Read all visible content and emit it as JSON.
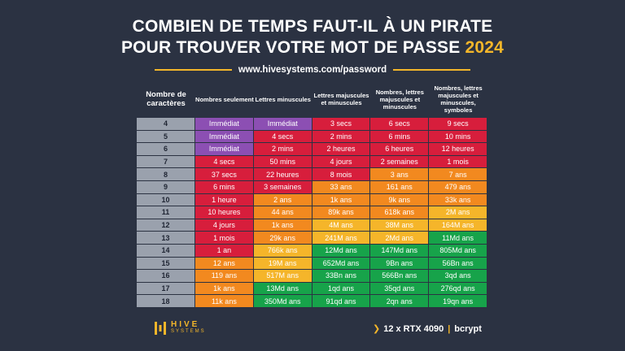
{
  "title": {
    "line1": "COMBIEN DE TEMPS FAUT-IL À UN PIRATE",
    "line2": "POUR TROUVER VOTRE MOT DE PASSE",
    "year": "2024"
  },
  "url": "www.hivesystems.com/password",
  "headers": [
    "Nombre de caractères",
    "Nombres seulement",
    "Lettres minuscules",
    "Lettres majuscules et minuscules",
    "Nombres, lettres majuscules et minuscules",
    "Nombres, lettres majuscules et minuscules, symboles"
  ],
  "rows": [
    {
      "n": "4",
      "cells": [
        {
          "t": "Immédiat",
          "c": "purple"
        },
        {
          "t": "Immédiat",
          "c": "purple"
        },
        {
          "t": "3 secs",
          "c": "red"
        },
        {
          "t": "6 secs",
          "c": "red"
        },
        {
          "t": "9 secs",
          "c": "red"
        }
      ]
    },
    {
      "n": "5",
      "cells": [
        {
          "t": "Immédiat",
          "c": "purple"
        },
        {
          "t": "4 secs",
          "c": "red"
        },
        {
          "t": "2 mins",
          "c": "red"
        },
        {
          "t": "6 mins",
          "c": "red"
        },
        {
          "t": "10 mins",
          "c": "red"
        }
      ]
    },
    {
      "n": "6",
      "cells": [
        {
          "t": "Immédiat",
          "c": "purple"
        },
        {
          "t": "2 mins",
          "c": "red"
        },
        {
          "t": "2 heures",
          "c": "red"
        },
        {
          "t": "6 heures",
          "c": "red"
        },
        {
          "t": "12 heures",
          "c": "red"
        }
      ]
    },
    {
      "n": "7",
      "cells": [
        {
          "t": "4 secs",
          "c": "red"
        },
        {
          "t": "50 mins",
          "c": "red"
        },
        {
          "t": "4 jours",
          "c": "red"
        },
        {
          "t": "2 semaines",
          "c": "red"
        },
        {
          "t": "1 mois",
          "c": "red"
        }
      ]
    },
    {
      "n": "8",
      "cells": [
        {
          "t": "37 secs",
          "c": "red"
        },
        {
          "t": "22 heures",
          "c": "red"
        },
        {
          "t": "8 mois",
          "c": "red"
        },
        {
          "t": "3 ans",
          "c": "orange"
        },
        {
          "t": "7 ans",
          "c": "orange"
        }
      ]
    },
    {
      "n": "9",
      "cells": [
        {
          "t": "6 mins",
          "c": "red"
        },
        {
          "t": "3 semaines",
          "c": "red"
        },
        {
          "t": "33 ans",
          "c": "orange"
        },
        {
          "t": "161 ans",
          "c": "orange"
        },
        {
          "t": "479 ans",
          "c": "orange"
        }
      ]
    },
    {
      "n": "10",
      "cells": [
        {
          "t": "1 heure",
          "c": "red"
        },
        {
          "t": "2 ans",
          "c": "orange"
        },
        {
          "t": "1k ans",
          "c": "orange"
        },
        {
          "t": "9k ans",
          "c": "orange"
        },
        {
          "t": "33k ans",
          "c": "orange"
        }
      ]
    },
    {
      "n": "11",
      "cells": [
        {
          "t": "10 heures",
          "c": "red"
        },
        {
          "t": "44 ans",
          "c": "orange"
        },
        {
          "t": "89k ans",
          "c": "orange"
        },
        {
          "t": "618k ans",
          "c": "orange"
        },
        {
          "t": "2M ans",
          "c": "yellow"
        }
      ]
    },
    {
      "n": "12",
      "cells": [
        {
          "t": "4 jours",
          "c": "red"
        },
        {
          "t": "1k ans",
          "c": "orange"
        },
        {
          "t": "4M ans",
          "c": "yellow"
        },
        {
          "t": "38M ans",
          "c": "yellow"
        },
        {
          "t": "164M ans",
          "c": "yellow"
        }
      ]
    },
    {
      "n": "13",
      "cells": [
        {
          "t": "1 mois",
          "c": "red"
        },
        {
          "t": "29k ans",
          "c": "orange"
        },
        {
          "t": "241M ans",
          "c": "yellow"
        },
        {
          "t": "2Md ans",
          "c": "yellow"
        },
        {
          "t": "11Md ans",
          "c": "green"
        }
      ]
    },
    {
      "n": "14",
      "cells": [
        {
          "t": "1 an",
          "c": "red"
        },
        {
          "t": "766k ans",
          "c": "yellow"
        },
        {
          "t": "12Md ans",
          "c": "green"
        },
        {
          "t": "147Md ans",
          "c": "green"
        },
        {
          "t": "805Md ans",
          "c": "green"
        }
      ]
    },
    {
      "n": "15",
      "cells": [
        {
          "t": "12 ans",
          "c": "orange"
        },
        {
          "t": "19M ans",
          "c": "yellow"
        },
        {
          "t": "652Md ans",
          "c": "green"
        },
        {
          "t": "9Bn ans",
          "c": "green"
        },
        {
          "t": "56Bn ans",
          "c": "green"
        }
      ]
    },
    {
      "n": "16",
      "cells": [
        {
          "t": "119 ans",
          "c": "orange"
        },
        {
          "t": "517M ans",
          "c": "yellow"
        },
        {
          "t": "33Bn ans",
          "c": "green"
        },
        {
          "t": "566Bn ans",
          "c": "green"
        },
        {
          "t": "3qd ans",
          "c": "green"
        }
      ]
    },
    {
      "n": "17",
      "cells": [
        {
          "t": "1k ans",
          "c": "orange"
        },
        {
          "t": "13Md ans",
          "c": "green"
        },
        {
          "t": "1qd ans",
          "c": "green"
        },
        {
          "t": "35qd ans",
          "c": "green"
        },
        {
          "t": "276qd ans",
          "c": "green"
        }
      ]
    },
    {
      "n": "18",
      "cells": [
        {
          "t": "11k ans",
          "c": "orange"
        },
        {
          "t": "350Md ans",
          "c": "green"
        },
        {
          "t": "91qd ans",
          "c": "green"
        },
        {
          "t": "2qn ans",
          "c": "green"
        },
        {
          "t": "19qn ans",
          "c": "green"
        }
      ]
    }
  ],
  "logo": {
    "name": "HIVE",
    "sub": "SYSTEMS"
  },
  "footer": {
    "hardware": "12 x RTX 4090",
    "separator": "|",
    "algo": "bcrypt"
  },
  "colors": {
    "background": "#2b3242",
    "accent": "#f3b62a",
    "purple": "#8c4fb3",
    "red": "#d71e3c",
    "orange": "#f2891f",
    "yellow": "#f5b52a",
    "green": "#17a34a",
    "count_cell": "#9aa1ad"
  }
}
